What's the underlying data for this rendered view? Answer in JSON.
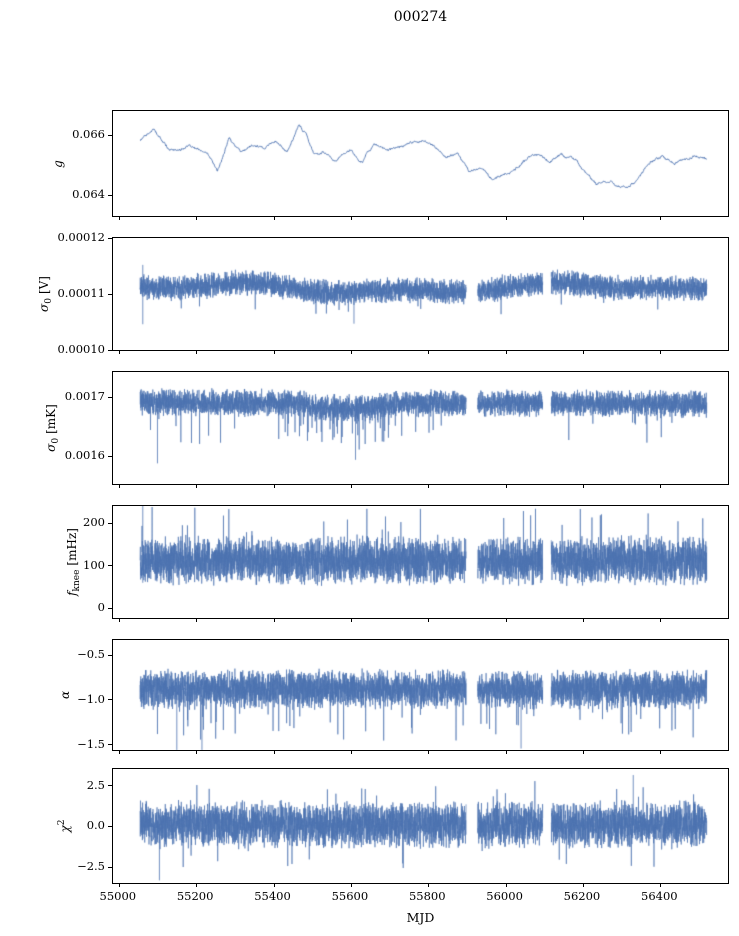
{
  "title": "000274",
  "line_color": "#4c72b0",
  "background": "#ffffff",
  "x_axis": {
    "label": "MJD",
    "xlim": [
      54985,
      56575
    ],
    "ticks": [
      55000,
      55200,
      55400,
      55600,
      55800,
      56000,
      56200,
      56400
    ],
    "tick_labels": [
      "55000",
      "55200",
      "55400",
      "55600",
      "55800",
      "56000",
      "56200",
      "56400"
    ],
    "data_range": [
      55055,
      56520
    ],
    "gaps": [
      [
        55898,
        55928
      ],
      [
        56096,
        56118
      ]
    ]
  },
  "chart_data": [
    {
      "type": "line",
      "name": "gain",
      "ylabel_sym": "g",
      "ylim": [
        0.0633,
        0.0668
      ],
      "yticks": [
        0.064,
        0.066
      ],
      "ytick_labels": [
        "0.064",
        "0.066"
      ],
      "style": "trend",
      "jitter": 5e-05,
      "anchors": [
        [
          55055,
          0.0658
        ],
        [
          55090,
          0.0662
        ],
        [
          55130,
          0.0655
        ],
        [
          55180,
          0.0656
        ],
        [
          55230,
          0.0654
        ],
        [
          55255,
          0.0648
        ],
        [
          55285,
          0.0659
        ],
        [
          55315,
          0.0654
        ],
        [
          55345,
          0.0657
        ],
        [
          55375,
          0.0656
        ],
        [
          55405,
          0.0658
        ],
        [
          55435,
          0.0655
        ],
        [
          55465,
          0.0663
        ],
        [
          55485,
          0.066
        ],
        [
          55505,
          0.0653
        ],
        [
          55535,
          0.0654
        ],
        [
          55565,
          0.0652
        ],
        [
          55600,
          0.0655
        ],
        [
          55630,
          0.0651
        ],
        [
          55660,
          0.0657
        ],
        [
          55695,
          0.0655
        ],
        [
          55725,
          0.0655
        ],
        [
          55755,
          0.0657
        ],
        [
          55785,
          0.0658
        ],
        [
          55815,
          0.0656
        ],
        [
          55845,
          0.0653
        ],
        [
          55875,
          0.0654
        ],
        [
          55905,
          0.0648
        ],
        [
          55935,
          0.0649
        ],
        [
          55965,
          0.0645
        ],
        [
          55995,
          0.0647
        ],
        [
          56025,
          0.0649
        ],
        [
          56055,
          0.0652
        ],
        [
          56085,
          0.0653
        ],
        [
          56115,
          0.0651
        ],
        [
          56145,
          0.0654
        ],
        [
          56175,
          0.0652
        ],
        [
          56205,
          0.0648
        ],
        [
          56235,
          0.0644
        ],
        [
          56265,
          0.0645
        ],
        [
          56295,
          0.0643
        ],
        [
          56315,
          0.0642
        ],
        [
          56345,
          0.0646
        ],
        [
          56375,
          0.0651
        ],
        [
          56405,
          0.0653
        ],
        [
          56435,
          0.0651
        ],
        [
          56465,
          0.0652
        ],
        [
          56495,
          0.0653
        ],
        [
          56520,
          0.0652
        ]
      ]
    },
    {
      "type": "line",
      "name": "sigma0-volts",
      "ylabel_sym": "σ",
      "ylabel_sub": "0",
      "ylabel_unit": "[V]",
      "ylim": [
        0.0001,
        0.00012
      ],
      "yticks": [
        0.0001,
        0.00011,
        0.00012
      ],
      "ytick_labels": [
        "0.00010",
        "0.00011",
        "0.00012"
      ],
      "style": "dense",
      "mean": 0.000111,
      "wobble": [
        7e-07,
        150,
        4e-07,
        60
      ],
      "half": 2.1e-06,
      "spike_prob": 0.004,
      "spike_dir": -1,
      "spike_extra": 3.5e-06,
      "spikes_xy": [
        [
          55062,
          0.0001046,
          0.0001152
        ],
        [
          55608,
          0.0001047,
          0.00011
        ]
      ]
    },
    {
      "type": "line",
      "name": "sigma0-mK",
      "ylabel_sym": "σ",
      "ylabel_sub": "0",
      "ylabel_unit": "[mK]",
      "ylim": [
        0.001553,
        0.001743
      ],
      "yticks": [
        0.0016,
        0.0017
      ],
      "ytick_labels": [
        "0.0016",
        "0.0017"
      ],
      "style": "dense",
      "mean_anchors": [
        [
          55055,
          0.001692
        ],
        [
          55450,
          0.00169
        ],
        [
          55520,
          0.001682
        ],
        [
          55650,
          0.001681
        ],
        [
          55720,
          0.00169
        ],
        [
          56520,
          0.001689
        ]
      ],
      "half": 2.1e-05,
      "spike_prob": 0.006,
      "spike_dir": -1,
      "spike_extra": 5e-05,
      "region_spikes": {
        "range": [
          55450,
          55700
        ],
        "prob": 0.035,
        "extra": 4e-05
      },
      "spikes_xy": [
        [
          55100,
          0.001588,
          0.00168
        ],
        [
          55612,
          0.001594,
          0.001672
        ]
      ]
    },
    {
      "type": "line",
      "name": "f-knee",
      "ylabel_sym": "f",
      "ylabel_sub": "knee",
      "ylabel_unit": "[mHz]",
      "ylim": [
        -23,
        241
      ],
      "yticks": [
        0,
        100,
        200
      ],
      "ytick_labels": [
        "0",
        "100",
        "200"
      ],
      "style": "dense",
      "mean": 112,
      "half": 52,
      "spike_prob": 0.007,
      "spike_dir": 1,
      "spike_extra": 75,
      "spikes_xy": [
        [
          55062,
          60,
          243
        ]
      ]
    },
    {
      "type": "line",
      "name": "alpha",
      "ylabel_sym": "α",
      "ylim": [
        -1.556,
        -0.333
      ],
      "yticks": [
        -1.5,
        -1.0,
        -0.5
      ],
      "ytick_labels": [
        "−1.5",
        "−1.0",
        "−0.5"
      ],
      "style": "dense",
      "mean": -0.88,
      "half": 0.2,
      "spike_prob": 0.012,
      "spike_dir": -1,
      "spike_extra": 0.38,
      "clip": [
        -1.55,
        -0.35
      ],
      "spikes_xy": [
        [
          55150,
          -1.555,
          -0.9
        ],
        [
          55215,
          -1.555,
          -0.95
        ],
        [
          56040,
          -1.54,
          -0.9
        ]
      ]
    },
    {
      "type": "line",
      "name": "chi2",
      "ylabel_sym": "χ",
      "ylabel_sup": "2",
      "ylim": [
        -3.46,
        3.52
      ],
      "yticks": [
        -2.5,
        0.0,
        2.5
      ],
      "ytick_labels": [
        "−2.5",
        "0.0",
        "2.5"
      ],
      "style": "dense",
      "mean": 0.12,
      "half": 1.3,
      "spike_prob": 0.006,
      "spike_dir": 0,
      "spike_extra": 1.4,
      "spikes_xy": [
        [
          55105,
          -3.3,
          0.0
        ],
        [
          56330,
          0.2,
          3.15
        ]
      ]
    }
  ]
}
